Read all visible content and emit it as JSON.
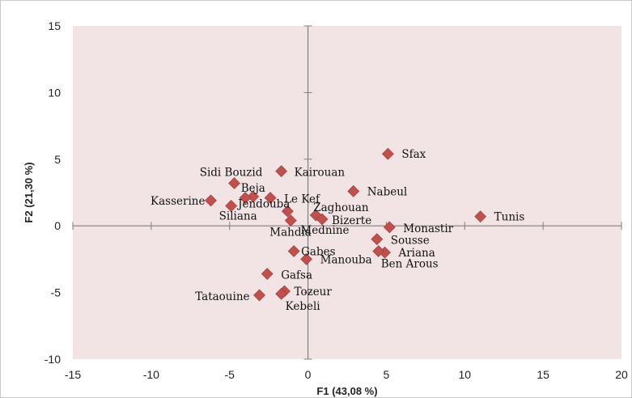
{
  "chart_data": {
    "type": "scatter",
    "xlabel": "F1 (43,08 %)",
    "ylabel": "F2 (21,30 %)",
    "xlim": [
      -15,
      20
    ],
    "ylim": [
      -10,
      15
    ],
    "xticks": [
      -15,
      -10,
      -5,
      0,
      5,
      10,
      15,
      20
    ],
    "yticks": [
      -10,
      -5,
      0,
      5,
      10,
      15
    ],
    "colors": {
      "marker": "#c0504d",
      "plot_bg": "#f2e4e4",
      "axis": "#7f7f7f"
    },
    "points": [
      {
        "label": "Sfax",
        "x": 5.1,
        "y": 5.4
      },
      {
        "label": "Kairouan",
        "x": -1.7,
        "y": 4.1
      },
      {
        "label": "Sidi Bouzid",
        "x": -4.7,
        "y": 3.2
      },
      {
        "label": "Nabeul",
        "x": 2.9,
        "y": 2.6
      },
      {
        "label": "Beja",
        "x": -3.5,
        "y": 2.2
      },
      {
        "label": "Le Kef",
        "x": -2.4,
        "y": 2.1
      },
      {
        "label": "Kasserine",
        "x": -6.2,
        "y": 1.9
      },
      {
        "label": "Jendouba",
        "x": -4.0,
        "y": 2.1
      },
      {
        "label": "Siliana",
        "x": -4.9,
        "y": 1.5
      },
      {
        "label": "Zaghouan",
        "x": 0.5,
        "y": 0.8
      },
      {
        "label": "Tunis",
        "x": 11.0,
        "y": 0.7
      },
      {
        "label": "Bizerte",
        "x": 0.9,
        "y": 0.5
      },
      {
        "label": "Mahdia",
        "x": -1.1,
        "y": 0.4
      },
      {
        "label": "Mednine",
        "x": -1.3,
        "y": 1.1
      },
      {
        "label": "Monastir",
        "x": 5.2,
        "y": -0.1
      },
      {
        "label": "Sousse",
        "x": 4.4,
        "y": -1.0
      },
      {
        "label": "Ariana",
        "x": 4.9,
        "y": -2.0
      },
      {
        "label": "Ben Arous",
        "x": 4.5,
        "y": -1.9
      },
      {
        "label": "Gabes",
        "x": -0.9,
        "y": -1.9
      },
      {
        "label": "Manouba",
        "x": -0.1,
        "y": -2.5
      },
      {
        "label": "Gafsa",
        "x": -2.6,
        "y": -3.6
      },
      {
        "label": "Tozeur",
        "x": -1.5,
        "y": -4.9
      },
      {
        "label": "Kebeli",
        "x": -1.7,
        "y": -5.1
      },
      {
        "label": "Tataouine",
        "x": -3.1,
        "y": -5.2
      }
    ]
  }
}
